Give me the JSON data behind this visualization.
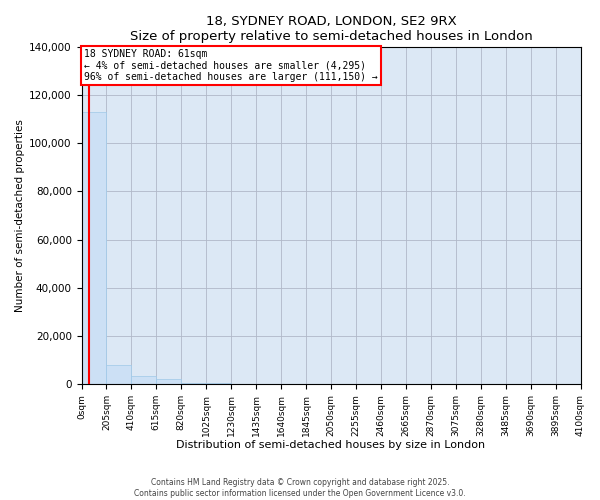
{
  "title": "18, SYDNEY ROAD, LONDON, SE2 9RX",
  "subtitle": "Size of property relative to semi-detached houses in London",
  "xlabel": "Distribution of semi-detached houses by size in London",
  "ylabel": "Number of semi-detached properties",
  "property_size": 61,
  "property_label": "18 SYDNEY ROAD: 61sqm",
  "pct_smaller": 4,
  "pct_larger": 96,
  "n_smaller": 4295,
  "n_larger": 111150,
  "bar_color": "#cce0f5",
  "bar_edge_color": "#9ec8e8",
  "marker_color": "red",
  "box_color": "red",
  "ylim": [
    0,
    140000
  ],
  "yticks": [
    0,
    20000,
    40000,
    60000,
    80000,
    100000,
    120000,
    140000
  ],
  "footer": "Contains HM Land Registry data © Crown copyright and database right 2025.\nContains public sector information licensed under the Open Government Licence v3.0.",
  "bin_width": 205,
  "num_bins": 20,
  "bin_values": [
    113000,
    8000,
    3500,
    2200,
    600,
    300,
    150,
    100,
    60,
    40,
    25,
    15,
    10,
    7,
    5,
    4,
    3,
    2,
    1,
    1
  ]
}
